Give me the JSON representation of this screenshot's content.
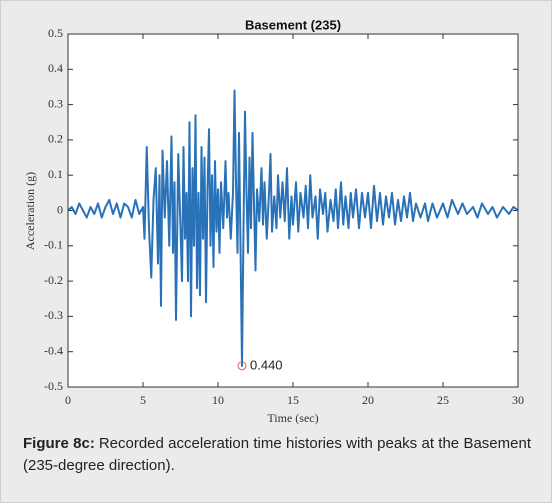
{
  "chart_data": {
    "type": "line",
    "title": "Basement (235)",
    "xlabel": "Time (sec)",
    "ylabel": "Acceleration (g)",
    "x": [
      0,
      0.25,
      0.5,
      0.75,
      1,
      1.25,
      1.5,
      1.75,
      2,
      2.25,
      2.5,
      2.75,
      3,
      3.25,
      3.5,
      3.75,
      4,
      4.25,
      4.5,
      4.75,
      5,
      5.1,
      5.25,
      5.4,
      5.55,
      5.7,
      5.85,
      6,
      6.1,
      6.2,
      6.3,
      6.45,
      6.6,
      6.75,
      6.9,
      7,
      7.1,
      7.2,
      7.35,
      7.5,
      7.6,
      7.7,
      7.8,
      7.9,
      8,
      8.1,
      8.2,
      8.3,
      8.4,
      8.5,
      8.6,
      8.7,
      8.8,
      8.9,
      9,
      9.1,
      9.2,
      9.3,
      9.4,
      9.5,
      9.6,
      9.7,
      9.8,
      9.9,
      10,
      10.1,
      10.2,
      10.35,
      10.5,
      10.6,
      10.7,
      10.85,
      11,
      11.1,
      11.2,
      11.3,
      11.4,
      11.5,
      11.6,
      11.7,
      11.8,
      11.9,
      12,
      12.1,
      12.2,
      12.3,
      12.4,
      12.5,
      12.6,
      12.75,
      12.9,
      13,
      13.1,
      13.25,
      13.4,
      13.5,
      13.6,
      13.75,
      13.9,
      14,
      14.15,
      14.3,
      14.45,
      14.6,
      14.75,
      14.9,
      15,
      15.2,
      15.35,
      15.5,
      15.7,
      15.85,
      16,
      16.15,
      16.3,
      16.5,
      16.65,
      16.8,
      17,
      17.15,
      17.3,
      17.5,
      17.7,
      17.85,
      18,
      18.2,
      18.35,
      18.5,
      18.7,
      18.85,
      19,
      19.2,
      19.4,
      19.6,
      19.8,
      20,
      20.2,
      20.4,
      20.6,
      20.8,
      21,
      21.2,
      21.4,
      21.6,
      21.8,
      22,
      22.2,
      22.4,
      22.6,
      22.8,
      23,
      23.2,
      23.5,
      23.8,
      24,
      24.3,
      24.6,
      25,
      25.3,
      25.6,
      26,
      26.3,
      26.6,
      27,
      27.3,
      27.6,
      28,
      28.3,
      28.6,
      29,
      29.4,
      29.7,
      30
    ],
    "series": [
      {
        "color": "#2a72b8",
        "values": [
          0,
          0.01,
          -0.01,
          0.02,
          0,
          -0.02,
          0.01,
          -0.01,
          0.02,
          -0.02,
          0.01,
          0.03,
          -0.01,
          0.02,
          -0.02,
          0.02,
          0.01,
          -0.02,
          0.03,
          -0.01,
          0.01,
          -0.08,
          0.18,
          -0.05,
          -0.19,
          0.03,
          0.12,
          -0.15,
          0.1,
          -0.27,
          0.17,
          -0.02,
          0.14,
          -0.1,
          0.21,
          -0.12,
          0.08,
          -0.31,
          0.16,
          -0.05,
          -0.2,
          0.18,
          -0.08,
          0.05,
          -0.2,
          0.25,
          -0.3,
          0.12,
          -0.1,
          0.27,
          -0.22,
          0.05,
          -0.24,
          0.18,
          -0.08,
          0.15,
          -0.26,
          0.06,
          0.23,
          -0.1,
          0.1,
          -0.16,
          0.14,
          -0.06,
          0.06,
          -0.12,
          0.08,
          -0.05,
          0.14,
          -0.02,
          0.05,
          -0.08,
          0.05,
          0.34,
          0.08,
          -0.12,
          0.22,
          -0.1,
          -0.44,
          -0.05,
          0.28,
          0.05,
          -0.12,
          0.15,
          -0.05,
          0.22,
          0.02,
          -0.17,
          0.06,
          -0.03,
          0.12,
          -0.04,
          0.08,
          -0.08,
          0.05,
          0.16,
          -0.06,
          0.04,
          -0.05,
          0.1,
          -0.02,
          0.08,
          -0.03,
          0.12,
          -0.08,
          0.04,
          -0.04,
          0.08,
          -0.06,
          0.05,
          -0.02,
          0.07,
          -0.05,
          0.1,
          -0.02,
          0.04,
          -0.08,
          0.06,
          -0.01,
          0.05,
          -0.06,
          0.03,
          -0.03,
          0.06,
          -0.05,
          0.08,
          -0.04,
          0.04,
          -0.05,
          0.05,
          -0.02,
          0.06,
          -0.05,
          0.05,
          -0.02,
          0.05,
          -0.05,
          0.07,
          -0.03,
          0.05,
          -0.04,
          0.04,
          -0.02,
          0.05,
          -0.04,
          0.03,
          -0.03,
          0.04,
          -0.02,
          0.05,
          -0.03,
          0.02,
          -0.02,
          0.02,
          -0.03,
          0.02,
          -0.02,
          0.02,
          -0.02,
          0.03,
          -0.01,
          0.02,
          -0.01,
          0.01,
          -0.02,
          0.02,
          -0.01,
          0.01,
          -0.02,
          0.01,
          -0.01,
          0.01,
          0
        ]
      }
    ],
    "xlim": [
      0,
      30
    ],
    "xticks": [
      0,
      5,
      10,
      15,
      20,
      25,
      30
    ],
    "ylim": [
      -0.5,
      0.5
    ],
    "yticks": [
      -0.5,
      -0.4,
      -0.3,
      -0.2,
      -0.1,
      0,
      0.1,
      0.2,
      0.3,
      0.4,
      0.5
    ],
    "grid": false,
    "annotations": [
      "0.440"
    ],
    "marker_color": "#e06060"
  },
  "caption": {
    "label": "Figure 8c:",
    "text": "Recorded acceleration time histories with peaks at the Basement (235-degree direction)."
  }
}
